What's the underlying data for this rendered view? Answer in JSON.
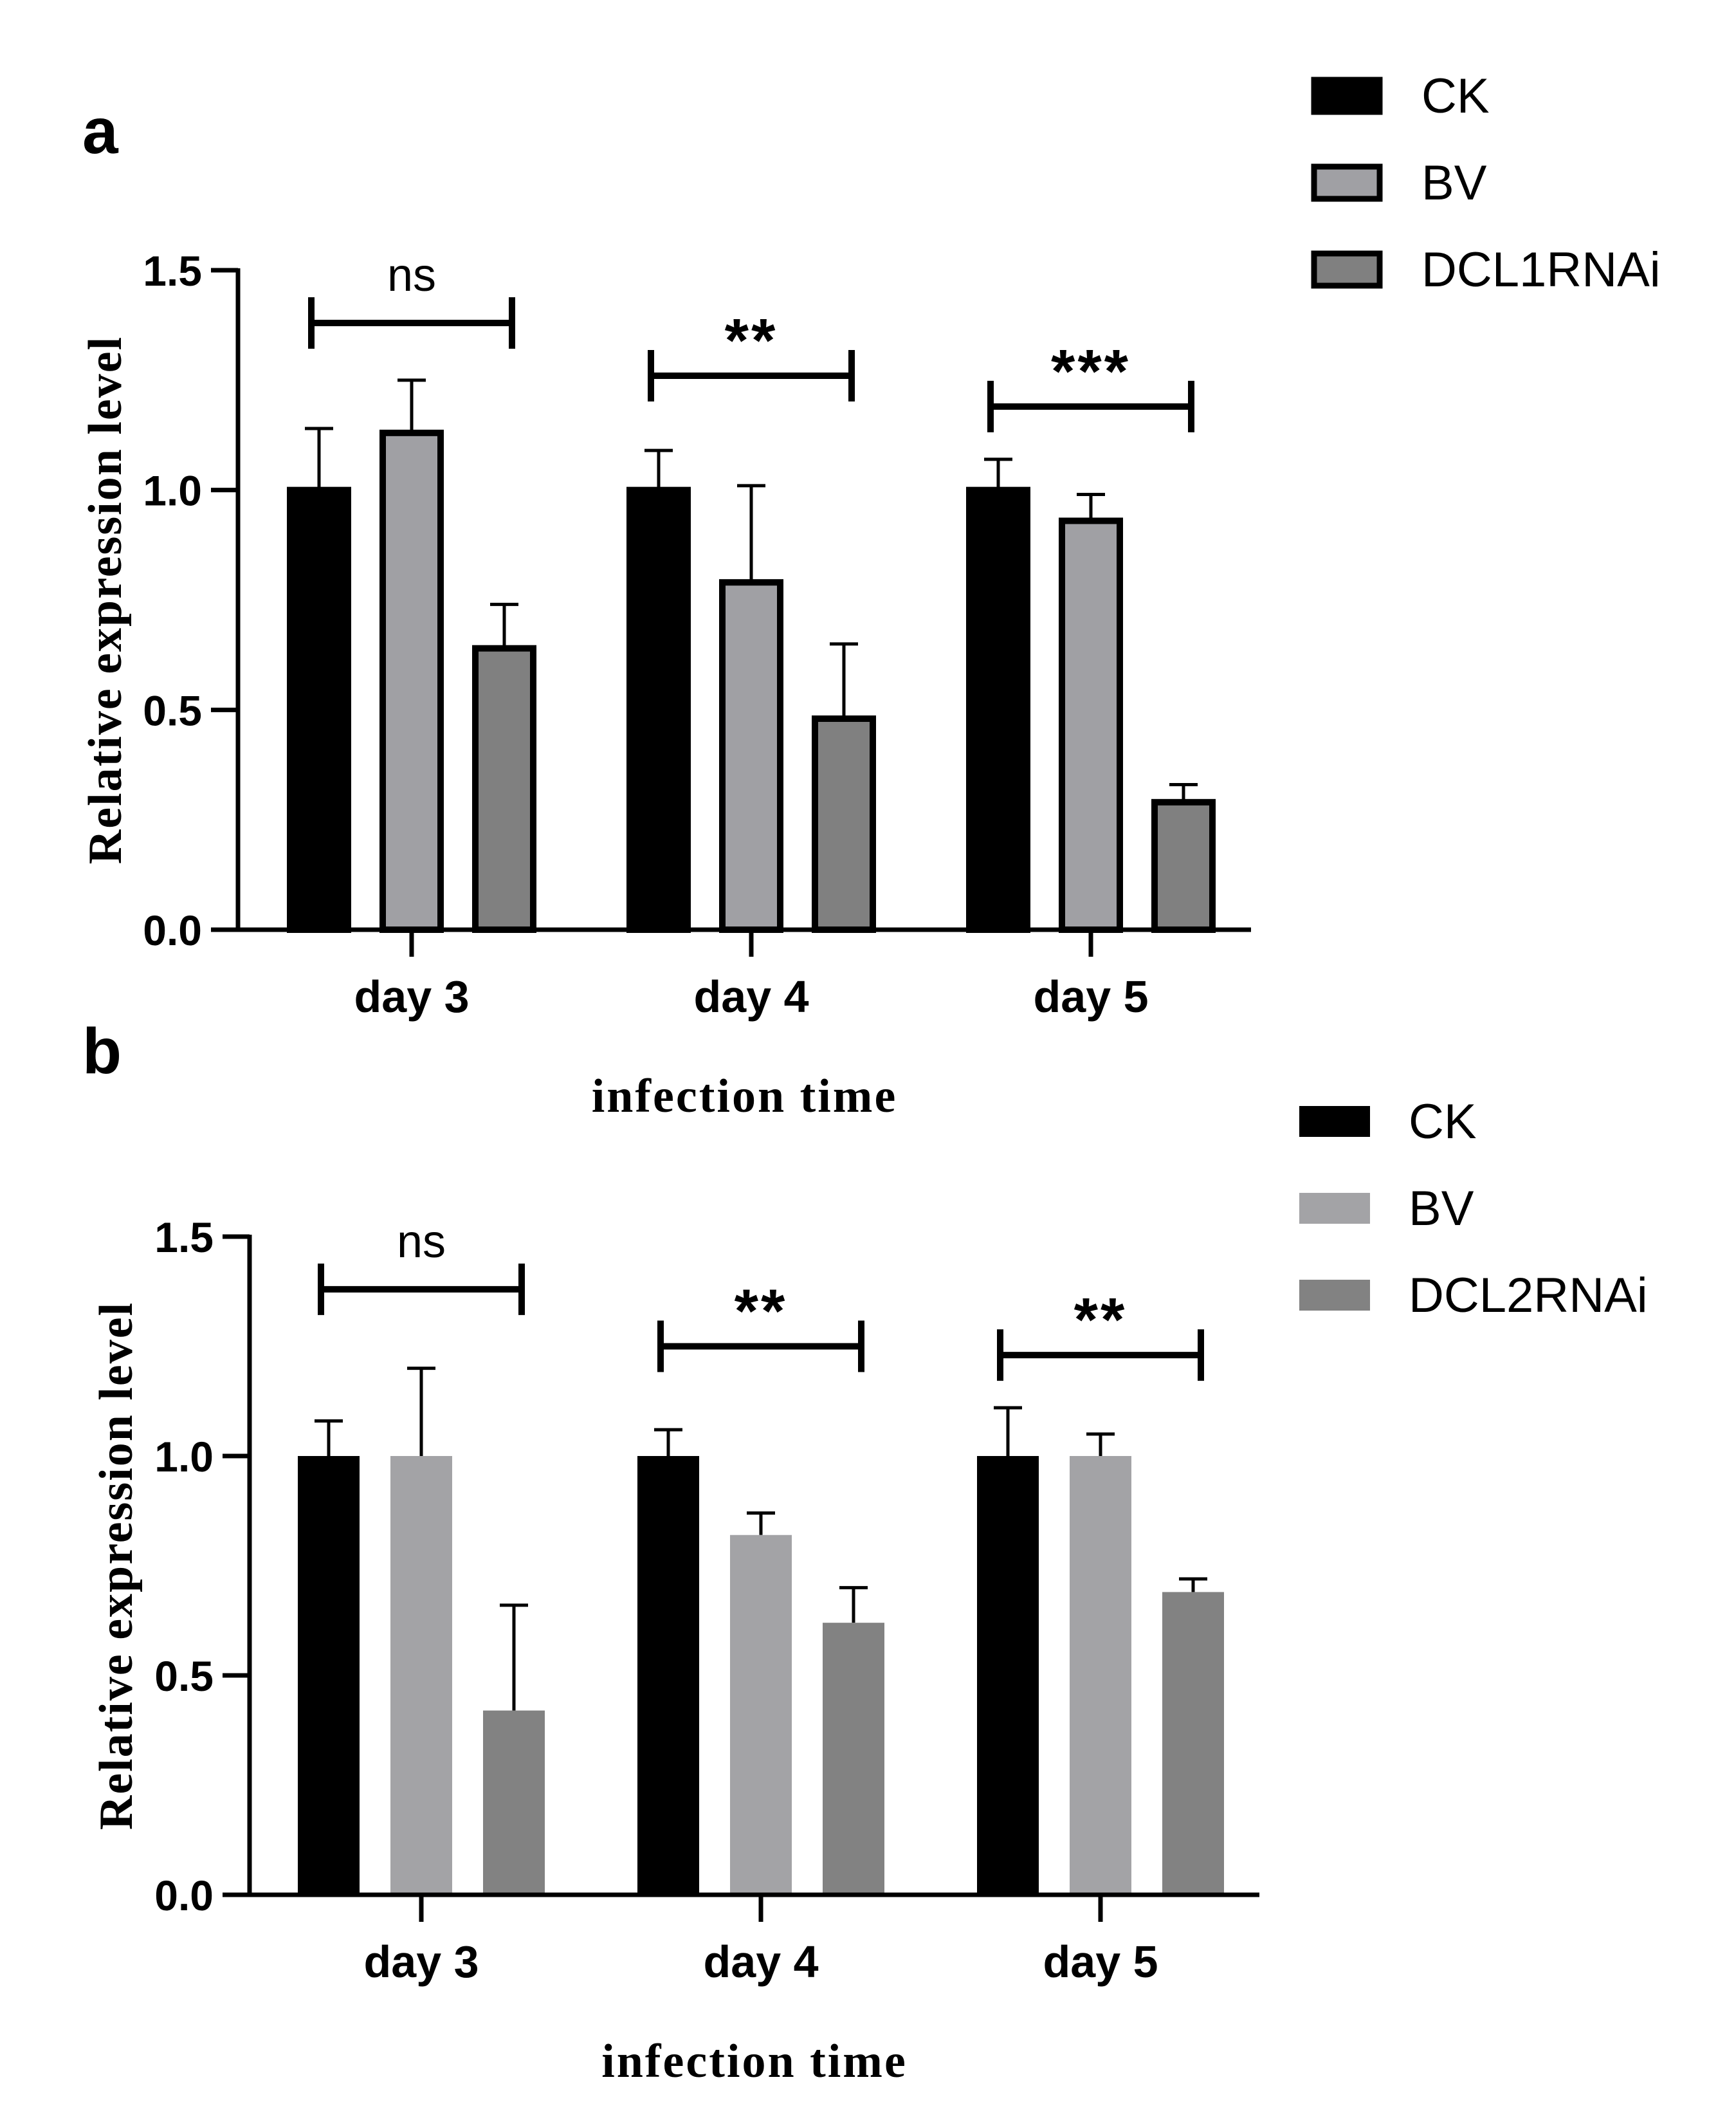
{
  "panels": [
    {
      "label": "a",
      "legend_outlined": true,
      "legend": [
        {
          "name": "CK",
          "color": "#000000"
        },
        {
          "name": "BV",
          "color": "#a0a0a4"
        },
        {
          "name": "DCL1RNAi",
          "color": "#808080"
        }
      ],
      "chart_data": {
        "type": "bar",
        "title": "",
        "xlabel": "infection time",
        "ylabel": "Relative expression level",
        "ylim": [
          0,
          1.5
        ],
        "yticks": [
          "0.0",
          "0.5",
          "1.0",
          "1.5"
        ],
        "categories": [
          "day 3",
          "day 4",
          "day 5"
        ],
        "series": [
          {
            "name": "CK",
            "values": [
              1.0,
              1.0,
              1.0
            ],
            "errors": [
              0.14,
              0.09,
              0.07
            ]
          },
          {
            "name": "BV",
            "values": [
              1.13,
              0.79,
              0.93
            ],
            "errors": [
              0.12,
              0.22,
              0.06
            ]
          },
          {
            "name": "DCL1RNAi",
            "values": [
              0.64,
              0.48,
              0.29
            ],
            "errors": [
              0.1,
              0.17,
              0.04
            ]
          }
        ],
        "significance": [
          {
            "category": "day 3",
            "label": "ns",
            "y": 1.38
          },
          {
            "category": "day 4",
            "label": "**",
            "y": 1.26
          },
          {
            "category": "day 5",
            "label": "***",
            "y": 1.19
          }
        ]
      }
    },
    {
      "label": "b",
      "legend_outlined": false,
      "legend": [
        {
          "name": "CK",
          "color": "#000000"
        },
        {
          "name": "BV",
          "color": "#a3a3a6"
        },
        {
          "name": "DCL2RNAi",
          "color": "#828282"
        }
      ],
      "chart_data": {
        "type": "bar",
        "title": "",
        "xlabel": "infection time",
        "ylabel": "Relative expression level",
        "ylim": [
          0,
          1.5
        ],
        "yticks": [
          "0.0",
          "0.5",
          "1.0",
          "1.5"
        ],
        "categories": [
          "day 3",
          "day 4",
          "day 5"
        ],
        "series": [
          {
            "name": "CK",
            "values": [
              1.0,
              1.0,
              1.0
            ],
            "errors": [
              0.08,
              0.06,
              0.11
            ]
          },
          {
            "name": "BV",
            "values": [
              1.0,
              0.82,
              1.0
            ],
            "errors": [
              0.2,
              0.05,
              0.05
            ]
          },
          {
            "name": "DCL2RNAi",
            "values": [
              0.42,
              0.62,
              0.69
            ],
            "errors": [
              0.24,
              0.08,
              0.03
            ]
          }
        ],
        "significance": [
          {
            "category": "day 3",
            "label": "ns",
            "y": 1.38
          },
          {
            "category": "day 4",
            "label": "**",
            "y": 1.25
          },
          {
            "category": "day 5",
            "label": "**",
            "y": 1.23
          }
        ]
      }
    }
  ]
}
